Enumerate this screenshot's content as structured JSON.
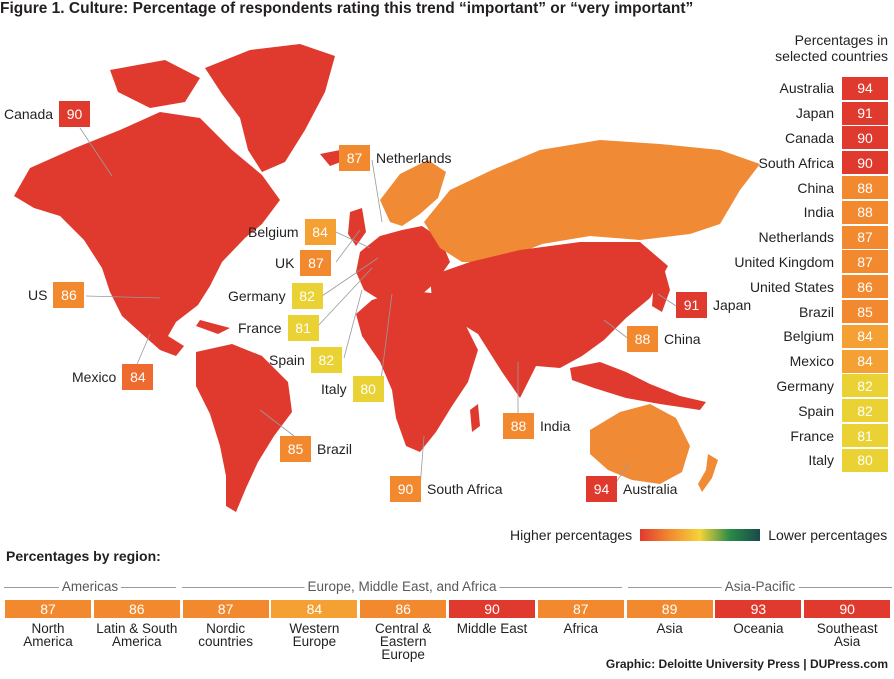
{
  "title": "Figure 1. Culture: Percentage of respondents rating this trend “important” or “very important”",
  "colors": {
    "red": "#e03a2f",
    "orange_dark": "#ef6a2e",
    "orange": "#f2892f",
    "orange_light": "#f4a033",
    "yellow": "#ead235",
    "map_red": "#e03a2f",
    "map_orange": "#f08a35"
  },
  "map_labels": [
    {
      "name": "Canada",
      "value": "90",
      "color": "#e03a2f"
    },
    {
      "name": "Netherlands",
      "value": "87",
      "color": "#f2892f"
    },
    {
      "name": "Belgium",
      "value": "84",
      "color": "#f4a033"
    },
    {
      "name": "UK",
      "value": "87",
      "color": "#f2892f"
    },
    {
      "name": "Germany",
      "value": "82",
      "color": "#ead235"
    },
    {
      "name": "France",
      "value": "81",
      "color": "#ead235"
    },
    {
      "name": "Spain",
      "value": "82",
      "color": "#ead235"
    },
    {
      "name": "Italy",
      "value": "80",
      "color": "#ead235"
    },
    {
      "name": "US",
      "value": "86",
      "color": "#f2892f"
    },
    {
      "name": "Mexico",
      "value": "84",
      "color": "#ef6a2e"
    },
    {
      "name": "Brazil",
      "value": "85",
      "color": "#f2892f"
    },
    {
      "name": "South Africa",
      "value": "90",
      "color": "#f2892f"
    },
    {
      "name": "India",
      "value": "88",
      "color": "#f2892f"
    },
    {
      "name": "China",
      "value": "88",
      "color": "#f2892f"
    },
    {
      "name": "Japan",
      "value": "91",
      "color": "#e03a2f"
    },
    {
      "name": "Australia",
      "value": "94",
      "color": "#e03a2f"
    }
  ],
  "side_heading": [
    "Percentages in",
    "selected countries"
  ],
  "selected_countries": [
    {
      "name": "Australia",
      "value": "94",
      "color": "#e03a2f"
    },
    {
      "name": "Japan",
      "value": "91",
      "color": "#e03a2f"
    },
    {
      "name": "Canada",
      "value": "90",
      "color": "#e03a2f"
    },
    {
      "name": "South Africa",
      "value": "90",
      "color": "#e03a2f"
    },
    {
      "name": "China",
      "value": "88",
      "color": "#f2892f"
    },
    {
      "name": "India",
      "value": "88",
      "color": "#f2892f"
    },
    {
      "name": "Netherlands",
      "value": "87",
      "color": "#f2892f"
    },
    {
      "name": "United Kingdom",
      "value": "87",
      "color": "#f2892f"
    },
    {
      "name": "United States",
      "value": "86",
      "color": "#f2892f"
    },
    {
      "name": "Brazil",
      "value": "85",
      "color": "#f2892f"
    },
    {
      "name": "Belgium",
      "value": "84",
      "color": "#f4a033"
    },
    {
      "name": "Mexico",
      "value": "84",
      "color": "#f4a033"
    },
    {
      "name": "Germany",
      "value": "82",
      "color": "#ead235"
    },
    {
      "name": "Spain",
      "value": "82",
      "color": "#ead235"
    },
    {
      "name": "France",
      "value": "81",
      "color": "#ead235"
    },
    {
      "name": "Italy",
      "value": "80",
      "color": "#ead235"
    }
  ],
  "legend": {
    "higher": "Higher percentages",
    "lower": "Lower percentages"
  },
  "regions_title": "Percentages by region:",
  "region_groups": [
    "Americas",
    "Europe, Middle East, and Africa",
    "Asia-Pacific"
  ],
  "regions": [
    {
      "lines": [
        "North",
        "America"
      ],
      "value": "87",
      "color": "#f2892f"
    },
    {
      "lines": [
        "Latin & South",
        "America"
      ],
      "value": "86",
      "color": "#f2892f"
    },
    {
      "lines": [
        "Nordic",
        "countries"
      ],
      "value": "87",
      "color": "#f2892f"
    },
    {
      "lines": [
        "Western",
        "Europe"
      ],
      "value": "84",
      "color": "#f4a033"
    },
    {
      "lines": [
        "Central &",
        "Eastern Europe"
      ],
      "value": "86",
      "color": "#f2892f"
    },
    {
      "lines": [
        "Middle East",
        ""
      ],
      "value": "90",
      "color": "#e03a2f"
    },
    {
      "lines": [
        "Africa",
        ""
      ],
      "value": "87",
      "color": "#f2892f"
    },
    {
      "lines": [
        "Asia",
        ""
      ],
      "value": "89",
      "color": "#f2892f"
    },
    {
      "lines": [
        "Oceania",
        ""
      ],
      "value": "93",
      "color": "#e03a2f"
    },
    {
      "lines": [
        "Southeast",
        "Asia"
      ],
      "value": "90",
      "color": "#e03a2f"
    }
  ],
  "credit": "Graphic: Deloitte University Press  |  DUPress.com"
}
